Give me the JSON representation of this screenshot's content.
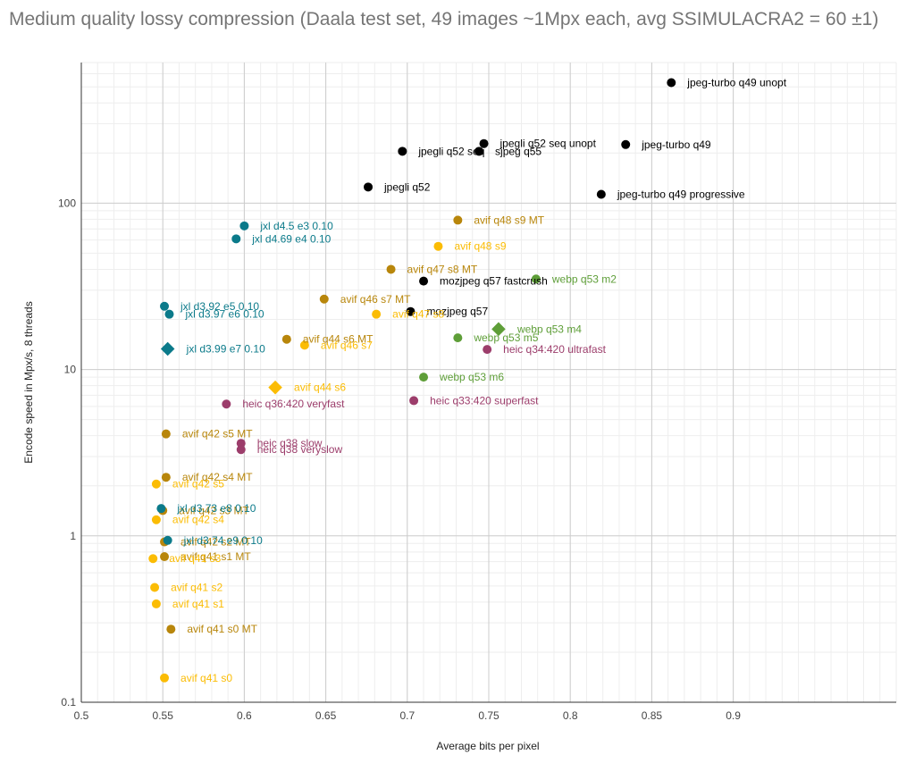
{
  "chart_data": {
    "type": "scatter",
    "title": "Medium quality lossy compression (Daala test set, 49 images ~1Mpx each, avg SSIMULACRA2 = 60 ±1)",
    "xlabel": "Average bits per pixel",
    "ylabel": "Encode speed in Mpx/s, 8 threads",
    "xlim": [
      0.5,
      1.0
    ],
    "ylim": [
      0.1,
      700
    ],
    "y_scale": "log",
    "grid": true,
    "legend": "none",
    "x_ticks": [
      "0.5",
      "0.55",
      "0.6",
      "0.65",
      "0.7",
      "0.75",
      "0.8",
      "0.85",
      "0.9"
    ],
    "x_tick_values": [
      0.5,
      0.55,
      0.6,
      0.65,
      0.7,
      0.75,
      0.8,
      0.85,
      0.9
    ],
    "y_ticks": [
      "0.1",
      "1",
      "10",
      "100"
    ],
    "y_tick_values": [
      0.1,
      1,
      10,
      100
    ],
    "colors": {
      "jpeg": "#000000",
      "avif_mt": "#b8860b",
      "avif": "#fbbc04",
      "jxl": "#0b7a8a",
      "webp": "#5e9e38",
      "heic": "#9c3d6b"
    },
    "points": [
      {
        "label": "jpeg-turbo q49 unopt",
        "x": 0.862,
        "y": 530,
        "group": "jpeg"
      },
      {
        "label": "jpegli q52 seq unopt",
        "x": 0.747,
        "y": 228,
        "group": "jpeg"
      },
      {
        "label": "jpeg-turbo q49",
        "x": 0.834,
        "y": 225,
        "group": "jpeg"
      },
      {
        "label": "jpegli q52 seq",
        "x": 0.697,
        "y": 205,
        "group": "jpeg"
      },
      {
        "label": "sjpeg q55",
        "x": 0.744,
        "y": 205,
        "group": "jpeg"
      },
      {
        "label": "jpegli q52",
        "x": 0.676,
        "y": 125,
        "group": "jpeg"
      },
      {
        "label": "jpeg-turbo q49 progressive",
        "x": 0.819,
        "y": 113,
        "group": "jpeg"
      },
      {
        "label": "mozjpeg q57 fastcrush",
        "x": 0.71,
        "y": 34,
        "group": "jpeg"
      },
      {
        "label": "mozjpeg q57",
        "x": 0.702,
        "y": 22.3,
        "group": "jpeg"
      },
      {
        "label": "avif q48 s9 MT",
        "x": 0.731,
        "y": 79,
        "group": "avif_mt"
      },
      {
        "label": "avif q47 s8 MT",
        "x": 0.69,
        "y": 40,
        "group": "avif_mt"
      },
      {
        "label": "avif q46 s7 MT",
        "x": 0.649,
        "y": 26.5,
        "group": "avif_mt"
      },
      {
        "label": "avif q44 s6 MT",
        "x": 0.626,
        "y": 15.2,
        "group": "avif_mt"
      },
      {
        "label": "avif q42 s5 MT",
        "x": 0.552,
        "y": 4.1,
        "group": "avif_mt"
      },
      {
        "label": "avif q42 s4 MT",
        "x": 0.552,
        "y": 2.25,
        "group": "avif_mt"
      },
      {
        "label": "avif q42 s3 MT",
        "x": 0.55,
        "y": 1.42,
        "group": "avif_mt"
      },
      {
        "label": "avif q42 s2 MT",
        "x": 0.551,
        "y": 0.92,
        "group": "avif_mt"
      },
      {
        "label": "avif q41 s1 MT",
        "x": 0.551,
        "y": 0.75,
        "group": "avif_mt"
      },
      {
        "label": "avif q41 s0 MT",
        "x": 0.555,
        "y": 0.275,
        "group": "avif_mt"
      },
      {
        "label": "avif q48 s9",
        "x": 0.719,
        "y": 55,
        "group": "avif"
      },
      {
        "label": "avif q47 s8",
        "x": 0.681,
        "y": 21.5,
        "group": "avif"
      },
      {
        "label": "avif q46 s7",
        "x": 0.637,
        "y": 14,
        "group": "avif"
      },
      {
        "label": "avif q44 s6",
        "x": 0.619,
        "y": 7.8,
        "group": "avif",
        "shape": "diamond"
      },
      {
        "label": "avif q42 s5",
        "x": 0.546,
        "y": 2.05,
        "group": "avif"
      },
      {
        "label": "avif q42 s4",
        "x": 0.546,
        "y": 1.25,
        "group": "avif"
      },
      {
        "label": "avif q41 s3",
        "x": 0.544,
        "y": 0.73,
        "group": "avif"
      },
      {
        "label": "avif q41 s2",
        "x": 0.545,
        "y": 0.49,
        "group": "avif"
      },
      {
        "label": "avif q41 s1",
        "x": 0.546,
        "y": 0.39,
        "group": "avif"
      },
      {
        "label": "avif q41 s0",
        "x": 0.551,
        "y": 0.14,
        "group": "avif"
      },
      {
        "label": "jxl d4.5 e3 0.10",
        "x": 0.6,
        "y": 73,
        "group": "jxl"
      },
      {
        "label": "jxl d4.69 e4 0.10",
        "x": 0.595,
        "y": 61,
        "group": "jxl"
      },
      {
        "label": "jxl d3.92 e5 0.10",
        "x": 0.551,
        "y": 24,
        "group": "jxl"
      },
      {
        "label": "jxl d3.97 e6 0.10",
        "x": 0.554,
        "y": 21.5,
        "group": "jxl"
      },
      {
        "label": "jxl d3.99 e7 0.10",
        "x": 0.553,
        "y": 13.3,
        "group": "jxl",
        "shape": "diamond"
      },
      {
        "label": "jxl d3.73 e8 0.10",
        "x": 0.549,
        "y": 1.46,
        "group": "jxl"
      },
      {
        "label": "jxl d3.74 e9 0.10",
        "x": 0.553,
        "y": 0.94,
        "group": "jxl"
      },
      {
        "label": "webp q53 m2",
        "x": 0.779,
        "y": 35,
        "group": "webp"
      },
      {
        "label": "webp q53 m4",
        "x": 0.756,
        "y": 17.5,
        "group": "webp",
        "shape": "diamond"
      },
      {
        "label": "webp q53 m5",
        "x": 0.731,
        "y": 15.5,
        "group": "webp"
      },
      {
        "label": "webp q53 m6",
        "x": 0.71,
        "y": 9.0,
        "group": "webp"
      },
      {
        "label": "heic q34:420 ultrafast",
        "x": 0.749,
        "y": 13.2,
        "group": "heic"
      },
      {
        "label": "heic q33:420 superfast",
        "x": 0.704,
        "y": 6.5,
        "group": "heic"
      },
      {
        "label": "heic q36:420 veryfast",
        "x": 0.589,
        "y": 6.2,
        "group": "heic"
      },
      {
        "label": "heic q38 slow",
        "x": 0.598,
        "y": 3.6,
        "group": "heic"
      },
      {
        "label": "heic q38 veryslow",
        "x": 0.598,
        "y": 3.3,
        "group": "heic"
      }
    ]
  }
}
